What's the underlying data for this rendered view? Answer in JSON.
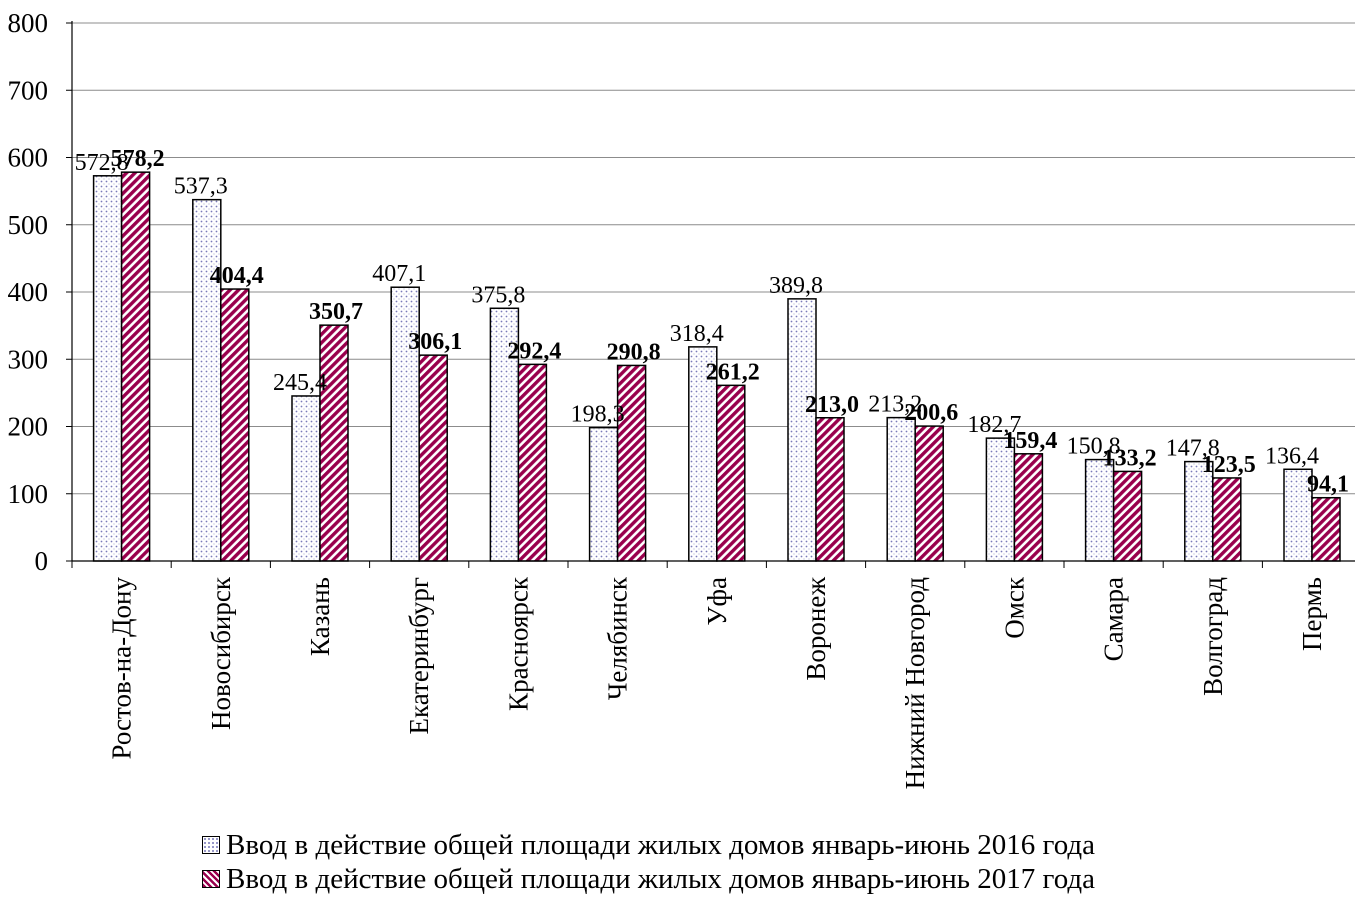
{
  "chart_data": {
    "type": "bar",
    "categories": [
      "Ростов-на-Дону",
      "Новосибирск",
      "Казань",
      "Екатеринбург",
      "Красноярск",
      "Челябинск",
      "Уфа",
      "Воронеж",
      "Нижний Новгород",
      "Омск",
      "Самара",
      "Волгоград",
      "Пермь"
    ],
    "series": [
      {
        "name": "Ввод в действие общей площади жилых домов январь-июнь 2016 года",
        "values": [
          572.8,
          537.3,
          245.4,
          407.1,
          375.8,
          198.3,
          318.4,
          389.8,
          213.2,
          182.7,
          150.8,
          147.8,
          136.4
        ],
        "labels": [
          "572,8",
          "537,3",
          "245,4",
          "407,1",
          "375,8",
          "198,3",
          "318,4",
          "389,8",
          "213,2",
          "182,7",
          "150,8",
          "147,8",
          "136,4"
        ],
        "pattern": "dots",
        "color": "#7a7ab8"
      },
      {
        "name": "Ввод в действие общей площади жилых домов январь-июнь 2017 года",
        "values": [
          578.2,
          404.4,
          350.7,
          306.1,
          292.4,
          290.8,
          261.2,
          213.0,
          200.6,
          159.4,
          133.2,
          123.5,
          94.1
        ],
        "labels": [
          "578,2",
          "404,4",
          "350,7",
          "306,1",
          "292,4",
          "290,8",
          "261,2",
          "213,0",
          "200,6",
          "159,4",
          "133,2",
          "123,5",
          "94,1"
        ],
        "pattern": "diagonal-stripes",
        "color": "#99004d"
      }
    ],
    "yticks": [
      "0",
      "100",
      "200",
      "300",
      "400",
      "500",
      "600",
      "700",
      "800"
    ],
    "ylim": [
      0,
      800
    ],
    "grid": true,
    "legend_position": "bottom"
  }
}
